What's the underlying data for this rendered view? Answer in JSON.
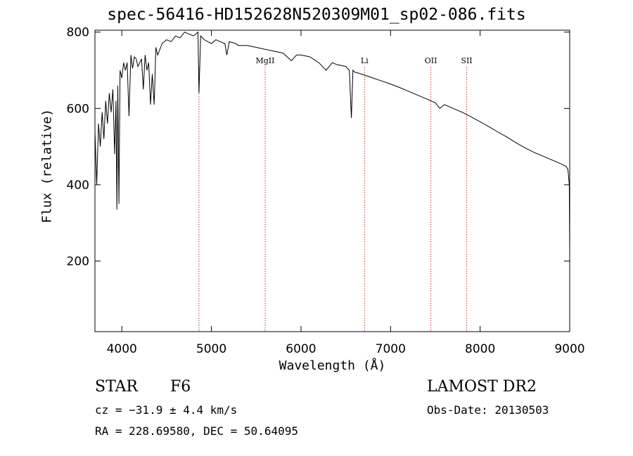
{
  "chart_data": {
    "type": "line",
    "title": "spec-56416-HD152628N520309M01_sp02-086.fits",
    "xlabel": "Wavelength (Å)",
    "ylabel": "Flux (relative)",
    "xlim": [
      3700,
      9000
    ],
    "ylim": [
      15,
      805
    ],
    "xticks": [
      4000,
      5000,
      6000,
      7000,
      8000,
      9000
    ],
    "yticks": [
      200,
      400,
      600,
      800
    ],
    "grid": false,
    "line_color": "#000000",
    "marker_color": "#cc3333",
    "series": [
      {
        "x": [
          3700,
          3720,
          3740,
          3760,
          3780,
          3800,
          3820,
          3840,
          3860,
          3880,
          3900,
          3920,
          3935,
          3945,
          3955,
          3968,
          3980,
          4000,
          4020,
          4040,
          4060,
          4080,
          4101,
          4120,
          4140,
          4160,
          4180,
          4200,
          4220,
          4240,
          4260,
          4280,
          4300,
          4320,
          4340,
          4361,
          4380,
          4400,
          4450,
          4500,
          4550,
          4600,
          4650,
          4700,
          4750,
          4800,
          4850,
          4861,
          4880,
          4920,
          4960,
          5000,
          5050,
          5100,
          5150,
          5172,
          5200,
          5270,
          5300,
          5400,
          5500,
          5600,
          5700,
          5800,
          5893,
          5950,
          6000,
          6100,
          6200,
          6280,
          6350,
          6400,
          6500,
          6540,
          6563,
          6580,
          6600,
          6650,
          6700,
          6800,
          6900,
          7000,
          7100,
          7200,
          7300,
          7400,
          7500,
          7550,
          7600,
          7700,
          7800,
          7900,
          8000,
          8100,
          8200,
          8300,
          8400,
          8500,
          8600,
          8700,
          8800,
          8900,
          8960,
          8980,
          8995,
          9000
        ],
        "y": [
          540,
          400,
          560,
          500,
          590,
          520,
          620,
          560,
          640,
          590,
          650,
          480,
          620,
          335,
          660,
          350,
          700,
          680,
          720,
          700,
          720,
          580,
          740,
          705,
          735,
          730,
          710,
          720,
          730,
          650,
          740,
          700,
          720,
          610,
          690,
          610,
          760,
          740,
          770,
          780,
          775,
          790,
          785,
          800,
          795,
          790,
          800,
          640,
          790,
          780,
          775,
          770,
          780,
          775,
          770,
          740,
          775,
          770,
          765,
          765,
          760,
          755,
          750,
          745,
          725,
          740,
          740,
          735,
          720,
          700,
          720,
          715,
          710,
          700,
          575,
          700,
          695,
          692,
          688,
          680,
          672,
          664,
          655,
          645,
          635,
          625,
          615,
          600,
          610,
          600,
          590,
          578,
          565,
          552,
          538,
          525,
          510,
          497,
          485,
          475,
          465,
          455,
          448,
          440,
          400,
          220
        ]
      }
    ],
    "line_markers": [
      {
        "label": "",
        "x": 4861
      },
      {
        "label": "MgII",
        "x": 5600
      },
      {
        "label": "Li",
        "x": 6710
      },
      {
        "label": "OII",
        "x": 7450
      },
      {
        "label": "SII",
        "x": 7850
      }
    ]
  },
  "info": {
    "object_class": "STAR",
    "subclass": "F6",
    "survey": "LAMOST DR2",
    "cz": "cz = −31.9 ± 4.4 km/s",
    "obs_date": "Obs-Date: 20130503",
    "coords": "RA = 228.69580, DEC =  50.64095"
  }
}
